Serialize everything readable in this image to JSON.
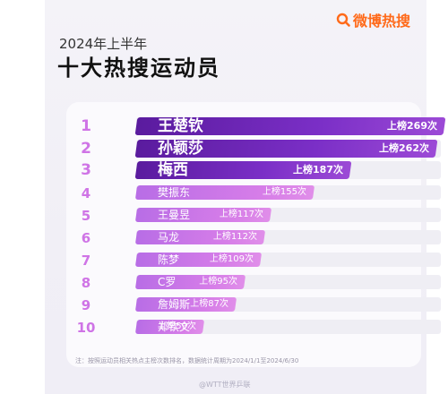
{
  "brand": {
    "name": "微博热搜"
  },
  "header": {
    "subtitle": "2024年上半年",
    "title": "十大热搜运动员"
  },
  "rows": [
    {
      "rank": "1",
      "name": "王楚钦",
      "count": "上榜269次",
      "value": 269
    },
    {
      "rank": "2",
      "name": "孙颖莎",
      "count": "上榜262次",
      "value": 262
    },
    {
      "rank": "3",
      "name": "梅西",
      "count": "上榜187次",
      "value": 187
    },
    {
      "rank": "4",
      "name": "樊振东",
      "count": "上榜155次",
      "value": 155
    },
    {
      "rank": "5",
      "name": "王曼昱",
      "count": "上榜117次",
      "value": 117
    },
    {
      "rank": "6",
      "name": "马龙",
      "count": "上榜112次",
      "value": 112
    },
    {
      "rank": "7",
      "name": "陈梦",
      "count": "上榜109次",
      "value": 109
    },
    {
      "rank": "8",
      "name": "C罗",
      "count": "上榜95次",
      "value": 95
    },
    {
      "rank": "9",
      "name": "詹姆斯",
      "count": "上榜87次",
      "value": 87
    },
    {
      "rank": "10",
      "name": "郑钦文",
      "count": "上榜59次",
      "value": 59
    }
  ],
  "footnote": "注：按照运动员相关热点主榜次数排名，数据统计周期为2024/1/1至2024/6/30",
  "watermark": "@WTT世界乒联",
  "colors": {
    "accent": "#cf74e6",
    "top_bar": "#7b2fc7",
    "bar": "#d67de8",
    "brand": "#ff6a1a"
  }
}
